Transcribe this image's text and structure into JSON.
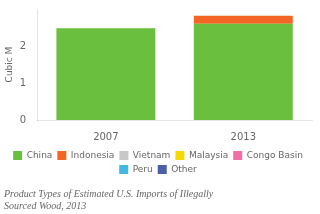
{
  "chart_data": {
    "type": "bar",
    "stacked": true,
    "title": [
      "Product Types of Estimated U.S. Imports of Illegally",
      "Sourced Wood, 2013"
    ],
    "categories": [
      "2007",
      "2013"
    ],
    "series": [
      {
        "name": "China",
        "color": "#6abf3e",
        "values": [
          2.48,
          2.6
        ]
      },
      {
        "name": "Indonesia",
        "color": "#f26522",
        "values": [
          0.0,
          0.22
        ]
      },
      {
        "name": "Vietnam",
        "color": "#c8c8c8",
        "values": [
          0.0,
          0.0
        ]
      },
      {
        "name": "Malaysia",
        "color": "#f5d800",
        "values": [
          0.0,
          0.0
        ]
      },
      {
        "name": "Congo Basin",
        "color": "#f06fa4",
        "values": [
          0.0,
          0.0
        ]
      },
      {
        "name": "Peru",
        "color": "#41b8e4",
        "values": [
          0.0,
          0.0
        ]
      },
      {
        "name": "Other",
        "color": "#4b5ea6",
        "values": [
          0.0,
          0.0
        ]
      }
    ],
    "ylabel": "Cubic M",
    "ylim": [
      0,
      3.0
    ],
    "yticks": [
      0,
      1,
      2
    ],
    "grid": false,
    "legend": "bottom"
  }
}
